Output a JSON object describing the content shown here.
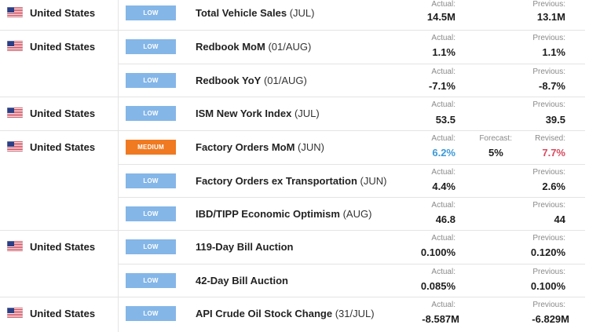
{
  "colors": {
    "low": "#84b6e8",
    "medium": "#ef7a22",
    "actual_highlight": "#3a9ad9",
    "revised_highlight": "#d94a5f"
  },
  "labels": {
    "actual": "Actual:",
    "previous": "Previous:",
    "forecast": "Forecast:",
    "revised": "Revised:"
  },
  "groups": [
    {
      "country": "United States",
      "flag": "us-flag-icon",
      "events": [
        {
          "impact": "LOW",
          "name": "Total Vehicle Sales",
          "period": "(JUL)",
          "actual": "14.5M",
          "previous": "13.1M"
        }
      ]
    },
    {
      "country": "United States",
      "flag": "us-flag-icon",
      "events": [
        {
          "impact": "LOW",
          "name": "Redbook MoM",
          "period": "(01/AUG)",
          "actual": "1.1%",
          "previous": "1.1%"
        },
        {
          "impact": "LOW",
          "name": "Redbook YoY",
          "period": "(01/AUG)",
          "actual": "-7.1%",
          "previous": "-8.7%"
        }
      ]
    },
    {
      "country": "United States",
      "flag": "us-flag-icon",
      "events": [
        {
          "impact": "LOW",
          "name": "ISM New York Index",
          "period": "(JUL)",
          "actual": "53.5",
          "previous": "39.5"
        }
      ]
    },
    {
      "country": "United States",
      "flag": "us-flag-icon",
      "events": [
        {
          "impact": "MEDIUM",
          "name": "Factory Orders MoM",
          "period": "(JUN)",
          "actual": "6.2%",
          "forecast": "5%",
          "revised": "7.7%"
        },
        {
          "impact": "LOW",
          "name": "Factory Orders ex Transportation",
          "period": "(JUN)",
          "actual": "4.4%",
          "previous": "2.6%"
        },
        {
          "impact": "LOW",
          "name": "IBD/TIPP Economic Optimism",
          "period": "(AUG)",
          "actual": "46.8",
          "previous": "44"
        }
      ]
    },
    {
      "country": "United States",
      "flag": "us-flag-icon",
      "events": [
        {
          "impact": "LOW",
          "name": "119-Day Bill Auction",
          "period": "",
          "actual": "0.100%",
          "previous": "0.120%"
        },
        {
          "impact": "LOW",
          "name": "42-Day Bill Auction",
          "period": "",
          "actual": "0.085%",
          "previous": "0.100%"
        }
      ]
    },
    {
      "country": "United States",
      "flag": "us-flag-icon",
      "events": [
        {
          "impact": "LOW",
          "name": "API Crude Oil Stock Change",
          "period": "(31/JUL)",
          "actual": "-8.587M",
          "previous": "-6.829M"
        }
      ]
    }
  ]
}
